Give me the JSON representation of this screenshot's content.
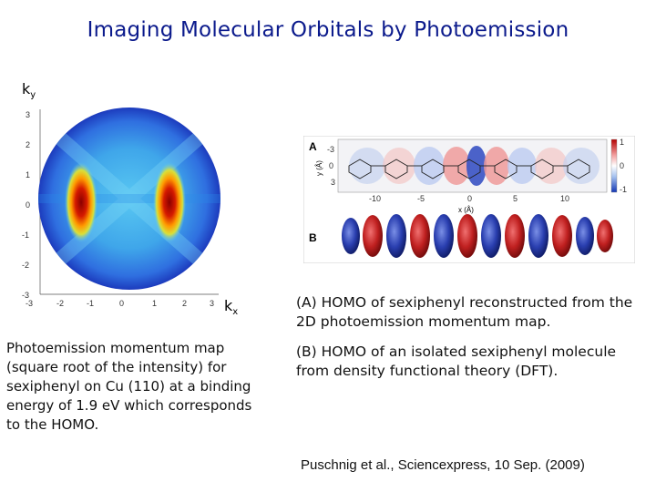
{
  "title": "Imaging Molecular Orbitals by Photoemission",
  "momentum_map": {
    "ky_base": "k",
    "ky_sub": "y",
    "kx_base": "k",
    "kx_sub": "x",
    "y_ticks": [
      "3",
      "2",
      "1",
      "0",
      "-1",
      "-2",
      "-3"
    ],
    "x_ticks": [
      "-3",
      "-2",
      "-1",
      "0",
      "1",
      "2",
      "3"
    ]
  },
  "figure_panel": {
    "label_a": "A",
    "label_b": "B",
    "y_axis_label": "y (Å)",
    "x_axis_label": "x (Å)",
    "y_ticks": [
      "-3",
      "0",
      "3"
    ],
    "x_ticks": [
      "-10",
      "-5",
      "0",
      "5",
      "10"
    ],
    "colorbar_ticks": [
      "1",
      "0",
      "-1"
    ]
  },
  "captions": {
    "left": "Photoemission momentum map (square root of the intensity) for sexiphenyl on Cu (110) at a binding energy of 1.9 eV which corresponds to the HOMO.",
    "a": "(A) HOMO of sexiphenyl reconstructed from the 2D photoemission momentum map.",
    "b": "(B) HOMO of an isolated sexiphenyl molecule from density functional theory (DFT)."
  },
  "citation": "Puschnig et al., Sciencexpress, 10 Sep. (2009)"
}
